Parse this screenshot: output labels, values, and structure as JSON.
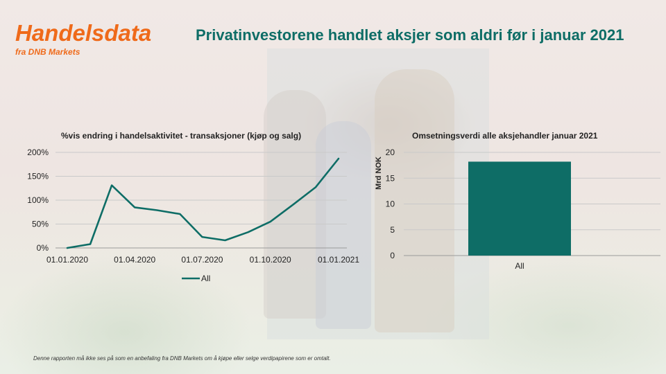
{
  "brand": {
    "title": "Handelsdata",
    "subtitle": "fra DNB Markets"
  },
  "headline": "Privatinvestorene handlet aksjer som aldri før i januar 2021",
  "disclaimer": "Denne rapporten må ikke ses på som en anbefaling fra DNB Markets om å kjøpe eller selge verdipapirene som er omtalt.",
  "colors": {
    "accent": "#ef6a1a",
    "series": "#0e6d66"
  },
  "chart_data": [
    {
      "type": "line",
      "title": "%vis  endring i handelsaktivitet - transaksjoner (kjøp og salg)",
      "x_tick_labels": [
        "01.01.2020",
        "01.04.2020",
        "01.07.2020",
        "01.10.2020",
        "01.01.2021"
      ],
      "y_tick_labels": [
        "0%",
        "50%",
        "100%",
        "150%",
        "200%"
      ],
      "ylim": [
        0,
        200
      ],
      "grid": true,
      "legend": "bottom",
      "series": [
        {
          "name": "All",
          "x": [
            "01.01.2020",
            "01.02.2020",
            "01.03.2020",
            "01.04.2020",
            "01.05.2020",
            "01.06.2020",
            "01.07.2020",
            "01.08.2020",
            "01.09.2020",
            "01.10.2020",
            "01.11.2020",
            "01.12.2020",
            "01.01.2021"
          ],
          "values": [
            0,
            8,
            131,
            85,
            79,
            71,
            23,
            16,
            33,
            55,
            91,
            127,
            187
          ]
        }
      ]
    },
    {
      "type": "bar",
      "title": "Omsetningsverdi  alle aksjehandler januar 2021",
      "categories": [
        "All"
      ],
      "values": [
        18.2
      ],
      "y_tick_labels": [
        "0",
        "5",
        "10",
        "15",
        "20"
      ],
      "ylabel": "Mrd NOK",
      "ylim": [
        0,
        20
      ],
      "grid": true
    }
  ]
}
